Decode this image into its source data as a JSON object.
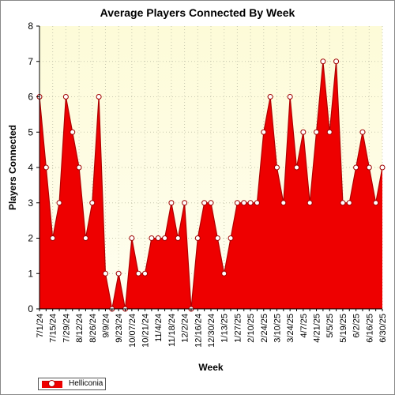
{
  "chart_data": {
    "type": "area",
    "title": "Average Players Connected By Week",
    "xlabel": "Week",
    "ylabel": "Players Connected",
    "ylim": [
      0,
      8
    ],
    "yticks": [
      "0",
      "1",
      "2",
      "3",
      "4",
      "5",
      "6",
      "7",
      "8"
    ],
    "xtick_labels": [
      "7/1/24",
      "7/15/24",
      "7/29/24",
      "8/12/24",
      "8/26/24",
      "9/9/24",
      "9/23/24",
      "10/07/24",
      "10/21/24",
      "11/4/24",
      "11/18/24",
      "12/2/24",
      "12/16/24",
      "12/30/24",
      "1/13/25",
      "1/27/25",
      "2/10/25",
      "2/24/25",
      "3/10/25",
      "3/24/25",
      "4/7/25",
      "4/21/25",
      "5/5/25",
      "5/19/25",
      "6/2/25",
      "6/16/25",
      "6/30/25"
    ],
    "grid": true,
    "legend_position": "bottom-left",
    "series": [
      {
        "name": "Helliconia",
        "color": "#ee0000",
        "values": [
          6,
          4,
          2,
          3,
          6,
          5,
          4,
          2,
          3,
          6,
          1,
          0,
          1,
          0,
          2,
          1,
          1,
          2,
          2,
          2,
          3,
          2,
          3,
          0,
          2,
          3,
          3,
          2,
          1,
          2,
          3,
          3,
          3,
          3,
          5,
          6,
          4,
          3,
          6,
          4,
          5,
          3,
          5,
          7,
          5,
          7,
          3,
          3,
          4,
          5,
          4,
          3,
          4
        ]
      }
    ]
  }
}
